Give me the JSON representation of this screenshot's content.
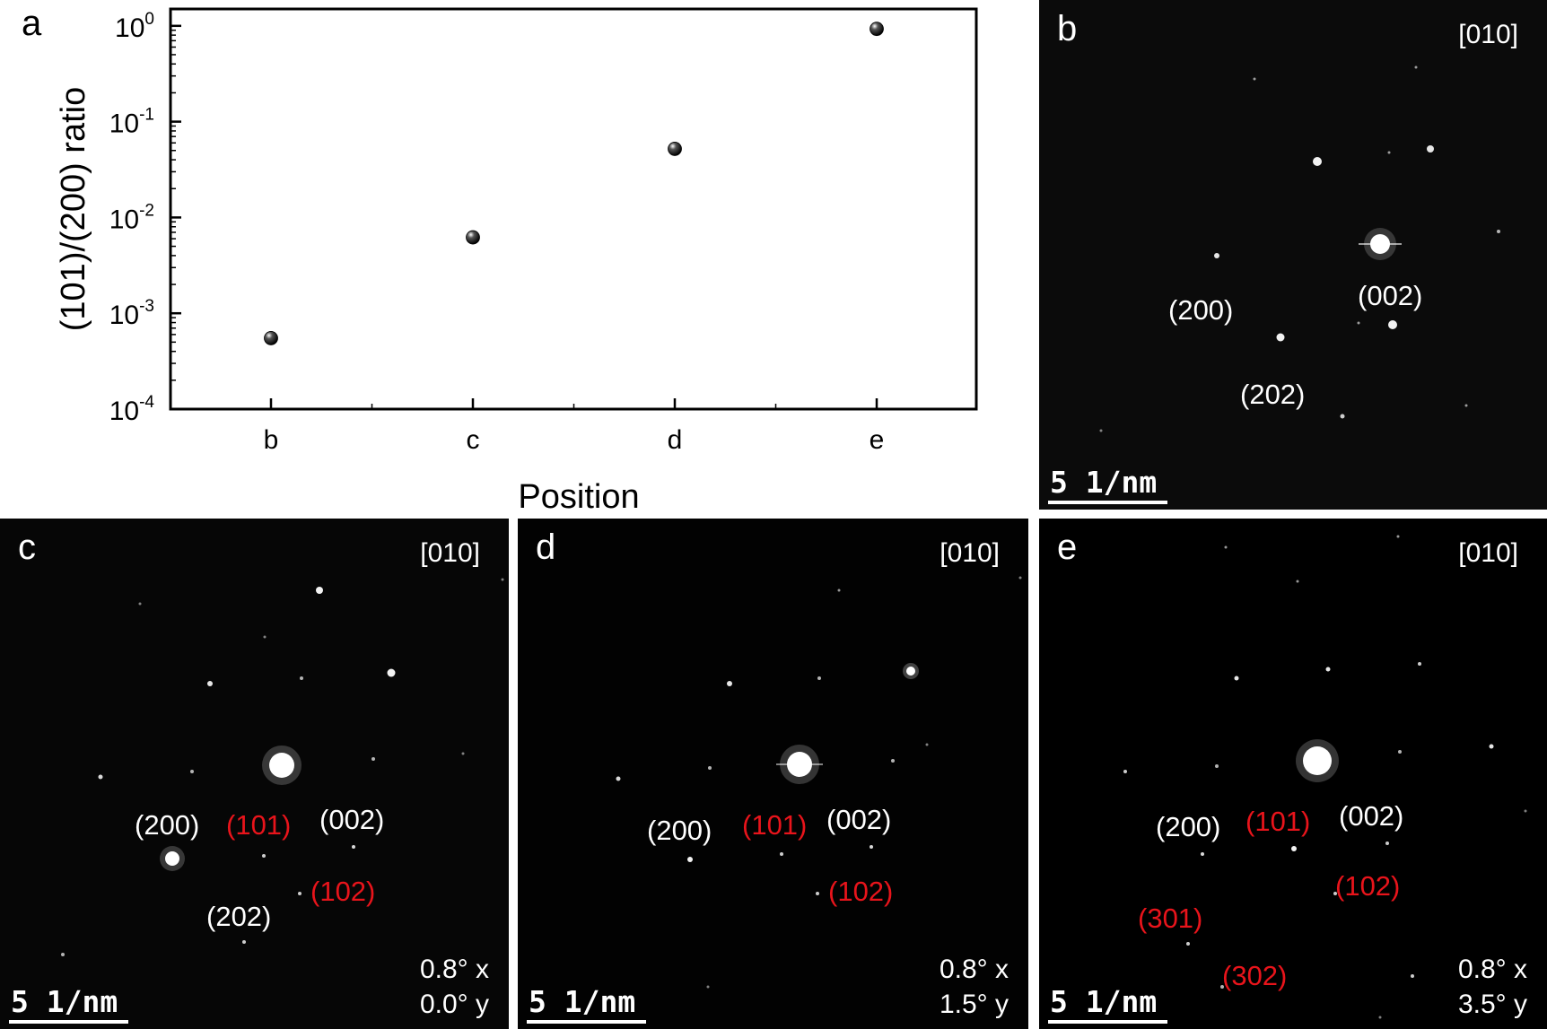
{
  "panel_a": {
    "letter": "a",
    "chart_data": {
      "type": "scatter",
      "categories": [
        "b",
        "c",
        "d",
        "e"
      ],
      "values": [
        0.00055,
        0.0062,
        0.052,
        0.93
      ],
      "ylabel": "(101)/(200) ratio",
      "xlabel": "Position",
      "yscale": "log",
      "ylim": [
        0.0001,
        1.5
      ],
      "y_ticks": [
        {
          "base": "10",
          "exp": "0",
          "value": 1
        },
        {
          "base": "10",
          "exp": "-1",
          "value": 0.1
        },
        {
          "base": "10",
          "exp": "-2",
          "value": 0.01
        },
        {
          "base": "10",
          "exp": "-3",
          "value": 0.001
        },
        {
          "base": "10",
          "exp": "-4",
          "value": 0.0001
        }
      ],
      "grid": false,
      "marker_color": "#000000"
    }
  },
  "panels": {
    "b": {
      "letter": "b",
      "zone": "[010]",
      "scale": "5 1/nm",
      "labels": {
        "l200": "(200)",
        "l002": "(002)",
        "l202": "(202)"
      }
    },
    "c": {
      "letter": "c",
      "zone": "[010]",
      "scale": "5 1/nm",
      "tilt_x": "0.8° x",
      "tilt_y": "0.0° y",
      "labels": {
        "l200": "(200)",
        "l101": "(101)",
        "l002": "(002)",
        "l102": "(102)",
        "l202": "(202)"
      }
    },
    "d": {
      "letter": "d",
      "zone": "[010]",
      "scale": "5 1/nm",
      "tilt_x": "0.8° x",
      "tilt_y": "1.5° y",
      "labels": {
        "l200": "(200)",
        "l101": "(101)",
        "l002": "(002)",
        "l102": "(102)"
      }
    },
    "e": {
      "letter": "e",
      "zone": "[010]",
      "scale": "5 1/nm",
      "tilt_x": "0.8° x",
      "tilt_y": "3.5° y",
      "labels": {
        "l200": "(200)",
        "l101": "(101)",
        "l002": "(002)",
        "l102": "(102)",
        "l301": "(301)",
        "l302": "(302)"
      }
    }
  },
  "colors": {
    "indexed_white": "#ffffff",
    "indexed_red": "#e8141b",
    "pattern_background": "#000000"
  }
}
